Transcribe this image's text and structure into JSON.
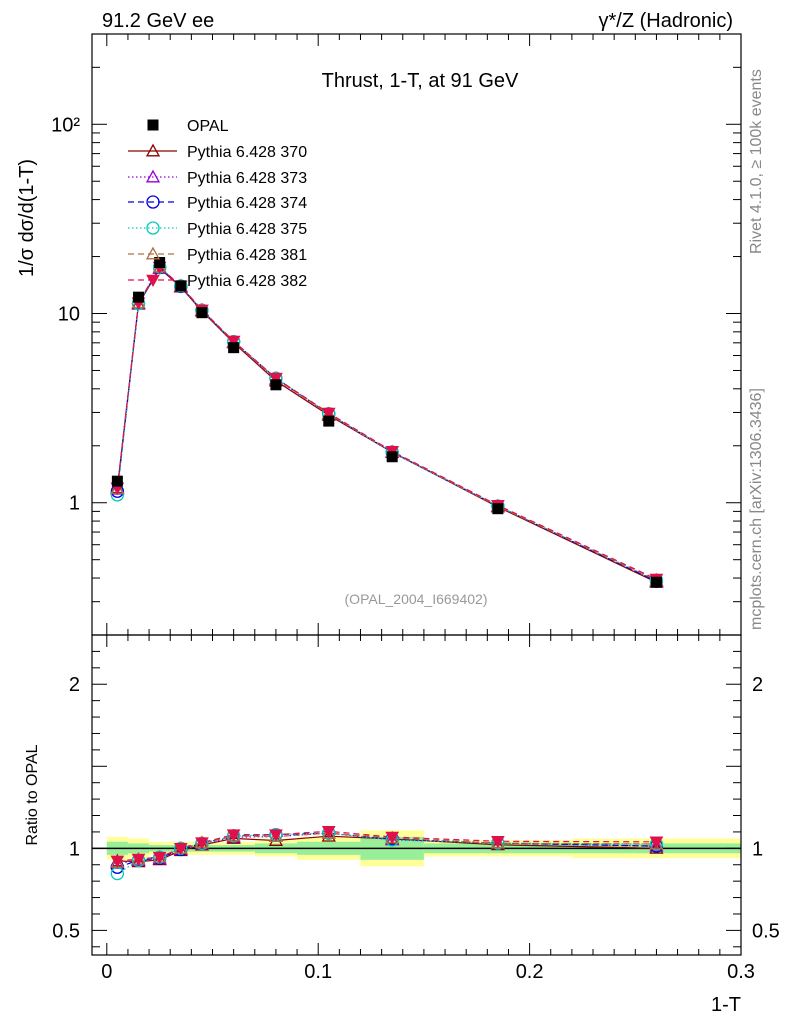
{
  "header": {
    "left": "91.2 GeV ee",
    "right": "γ*/Z (Hadronic)",
    "side_top": "Rivet 4.1.0, ≥ 100k events",
    "side_bottom": "mcplots.cern.ch [arXiv:1306.3436]"
  },
  "chart_data": {
    "type": "line",
    "title": "Thrust, 1-T, at 91 GeV",
    "reference": "(OPAL_2004_I669402)",
    "xlabel": "1-T",
    "ylabel": "1/σ  dσ/d(1-T)",
    "ratio_ylabel": "Ratio to OPAL",
    "xlim": [
      -0.007,
      0.3
    ],
    "ylim": [
      0.2,
      300
    ],
    "ylog": true,
    "ratio_ylim": [
      0.35,
      2.3
    ],
    "x_ticks": [
      "0",
      "0.1",
      "0.2",
      "0.3"
    ],
    "y_ticks": [
      "1",
      "10",
      "10²"
    ],
    "ratio_ticks": [
      "0.5",
      "1",
      "2"
    ],
    "x": [
      0.005,
      0.015,
      0.025,
      0.035,
      0.045,
      0.06,
      0.08,
      0.105,
      0.135,
      0.185,
      0.26
    ],
    "bin_edges": [
      0,
      0.01,
      0.02,
      0.03,
      0.04,
      0.05,
      0.07,
      0.09,
      0.12,
      0.15,
      0.22,
      0.3
    ],
    "data": {
      "name": "OPAL",
      "values": [
        1.3,
        12.2,
        18.6,
        14.0,
        10.1,
        6.6,
        4.2,
        2.7,
        1.75,
        0.93,
        0.38
      ],
      "band_inner": [
        0.04,
        0.03,
        0.02,
        0.02,
        0.02,
        0.02,
        0.03,
        0.04,
        0.07,
        0.03,
        0.03
      ],
      "band_outer": [
        0.07,
        0.06,
        0.04,
        0.04,
        0.04,
        0.04,
        0.05,
        0.07,
        0.11,
        0.05,
        0.06
      ]
    },
    "series": [
      {
        "name": "Pythia 6.428 370",
        "color": "#8b0000",
        "dash": "",
        "marker": "triangle",
        "values": [
          1.2,
          11.2,
          17.3,
          13.8,
          10.3,
          7.0,
          4.4,
          2.9,
          1.85,
          0.95,
          0.38
        ]
      },
      {
        "name": "Pythia 6.428 373",
        "color": "#9400d3",
        "dash": "1.5,2.5",
        "marker": "triangle",
        "values": [
          1.18,
          11.3,
          17.4,
          13.9,
          10.4,
          7.05,
          4.5,
          2.95,
          1.84,
          0.96,
          0.385
        ]
      },
      {
        "name": "Pythia 6.428 374",
        "color": "#0000dd",
        "dash": "6,4",
        "marker": "circle",
        "values": [
          1.15,
          11.3,
          17.5,
          13.9,
          10.4,
          7.1,
          4.55,
          2.95,
          1.85,
          0.96,
          0.385
        ]
      },
      {
        "name": "Pythia 6.428 375",
        "color": "#00ccbb",
        "dash": "1.5,2.5",
        "marker": "circle",
        "values": [
          1.1,
          11.3,
          17.6,
          14.0,
          10.4,
          7.1,
          4.55,
          2.95,
          1.84,
          0.96,
          0.39
        ]
      },
      {
        "name": "Pythia 6.428 381",
        "color": "#b07040",
        "dash": "6,4",
        "marker": "triangle",
        "values": [
          1.19,
          11.4,
          17.6,
          14.0,
          10.45,
          7.1,
          4.5,
          2.95,
          1.86,
          0.96,
          0.39
        ]
      },
      {
        "name": "Pythia 6.428 382",
        "color": "#e0104a",
        "dash": "6,4",
        "marker": "triangledown",
        "values": [
          1.2,
          11.4,
          17.6,
          14.0,
          10.45,
          7.15,
          4.55,
          2.98,
          1.87,
          0.97,
          0.395
        ]
      }
    ]
  }
}
